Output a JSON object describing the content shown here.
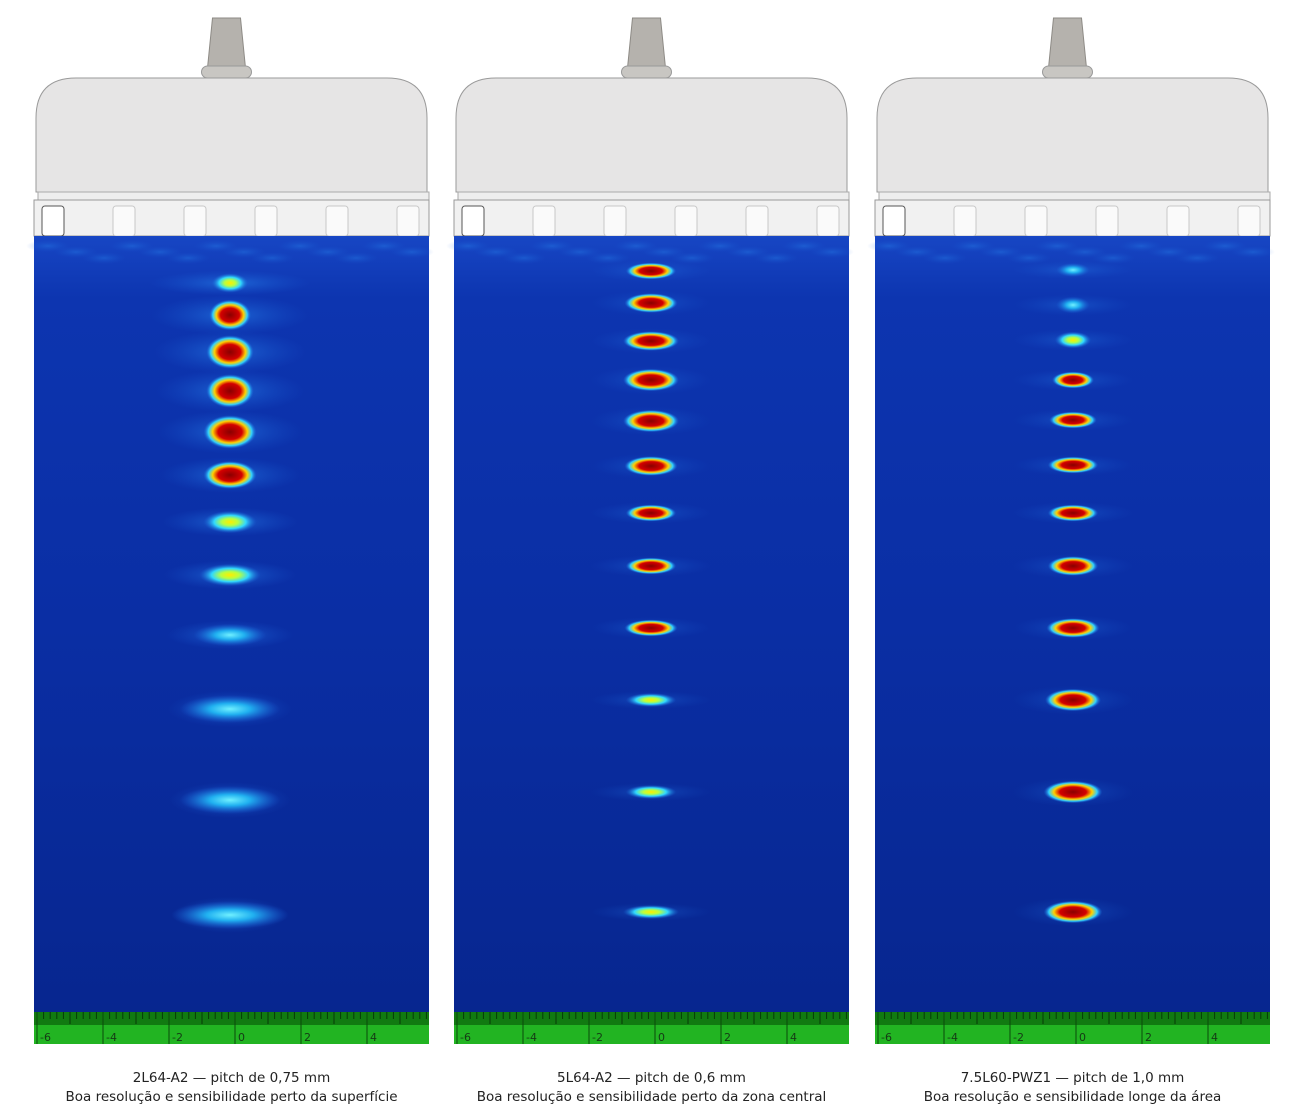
{
  "panels": [
    {
      "scale_labels": [
        -6,
        -4,
        -2,
        0,
        2,
        4
      ],
      "caption": {
        "title": "2L64-A2 — pitch de 0,75 mm",
        "subtitle": "Boa resolução e sensibilidade perto da superfície"
      }
    },
    {
      "scale_labels": [
        -6,
        -4,
        -2,
        0,
        2,
        4
      ],
      "caption": {
        "title": "5L64-A2 — pitch de 0,6 mm",
        "subtitle": "Boa resolução e sensibilidade perto da zona central"
      }
    },
    {
      "scale_labels": [
        -6,
        -4,
        -2,
        0,
        2,
        4
      ],
      "caption": {
        "title": "7.5L60-PWZ1 — pitch de 1,0 mm",
        "subtitle": "Boa resolução e sensibilidade longe da área"
      }
    }
  ]
}
